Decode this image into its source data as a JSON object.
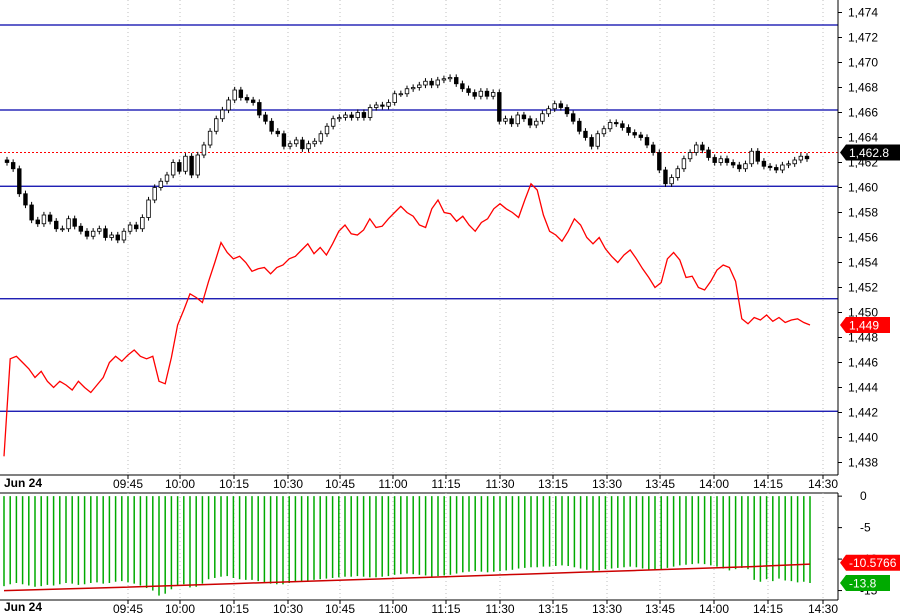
{
  "chart_data": [
    {
      "type": "line",
      "panel": "price",
      "ylim": [
        1437,
        1475
      ],
      "yticks": [
        1438,
        1440,
        1442,
        1444,
        1446,
        1448,
        1450,
        1452,
        1454,
        1456,
        1458,
        1460,
        1462,
        1464,
        1466,
        1468,
        1470,
        1472,
        1474
      ],
      "ytick_labels": [
        "1,438",
        "1,440",
        "1,442",
        "1,444",
        "1,446",
        "1,448",
        "1,450",
        "1,452",
        "1,454",
        "1,456",
        "1,458",
        "1,460",
        "1,462",
        "1,464",
        "1,466",
        "1,468",
        "1,470",
        "1,472",
        "1,474"
      ],
      "date_label": "Jun 24",
      "xtick_labels": [
        "09:45",
        "10:00",
        "10:15",
        "10:30",
        "10:45",
        "11:00",
        "11:15",
        "11:30",
        "13:15",
        "13:30",
        "13:45",
        "14:00",
        "14:15",
        "14:30"
      ],
      "horizontal_lines": [
        1473,
        1466.2,
        1460.1,
        1451.1,
        1442.1
      ],
      "dotted_level": 1462.8,
      "badges": [
        {
          "text": "1,462.8",
          "value": 1462.8,
          "color": "#000000"
        },
        {
          "text": "1,449",
          "value": 1449.0,
          "color": "#ff0000"
        }
      ],
      "series": [
        {
          "style": "candlestick",
          "close": [
            1462.0,
            1461.5,
            1459.5,
            1458.6,
            1457.4,
            1457.1,
            1457.8,
            1457.3,
            1456.7,
            1456.7,
            1457.5,
            1456.9,
            1456.5,
            1456.1,
            1456.5,
            1456.7,
            1456.0,
            1456.2,
            1455.8,
            1456.5,
            1457.0,
            1456.7,
            1457.6,
            1459.0,
            1460.0,
            1460.5,
            1461.0,
            1462.0,
            1461.3,
            1462.5,
            1461.0,
            1462.6,
            1463.4,
            1464.5,
            1465.5,
            1466.2,
            1467.0,
            1467.8,
            1467.2,
            1467.0,
            1466.8,
            1465.8,
            1465.3,
            1464.5,
            1464.3,
            1463.3,
            1463.5,
            1463.8,
            1463.1,
            1463.5,
            1463.7,
            1464.3,
            1464.9,
            1465.5,
            1465.6,
            1465.8,
            1465.6,
            1466.0,
            1465.6,
            1466.4,
            1466.6,
            1466.5,
            1466.8,
            1467.5,
            1467.5,
            1467.9,
            1468.0,
            1468.2,
            1468.5,
            1468.2,
            1468.6,
            1468.7,
            1468.8,
            1468.3,
            1467.9,
            1467.6,
            1467.3,
            1467.7,
            1467.3,
            1467.6,
            1465.3,
            1465.5,
            1465.1,
            1465.8,
            1465.5,
            1465.0,
            1465.3,
            1465.9,
            1466.3,
            1466.7,
            1466.4,
            1465.9,
            1465.3,
            1464.5,
            1464.0,
            1463.3,
            1464.3,
            1464.7,
            1465.2,
            1465.1,
            1464.8,
            1464.4,
            1464.2,
            1464.0,
            1463.4,
            1462.8,
            1461.4,
            1460.3,
            1460.8,
            1461.5,
            1462.3,
            1462.8,
            1463.4,
            1463.0,
            1462.4,
            1462.0,
            1462.3,
            1462.0,
            1461.8,
            1461.5,
            1461.9,
            1462.9,
            1462.1,
            1461.7,
            1461.6,
            1461.4,
            1461.8,
            1461.9,
            1462.2,
            1462.5,
            1462.3
          ]
        },
        {
          "style": "line",
          "color": "#ff0000",
          "values": [
            1438.5,
            1446.3,
            1446.5,
            1446.0,
            1445.5,
            1444.8,
            1445.3,
            1444.5,
            1444.0,
            1444.5,
            1444.2,
            1443.8,
            1444.5,
            1444.0,
            1443.6,
            1444.2,
            1444.8,
            1446.0,
            1446.5,
            1446.1,
            1446.6,
            1447.0,
            1446.5,
            1446.3,
            1446.5,
            1444.5,
            1444.3,
            1446.4,
            1449.0,
            1450.2,
            1451.5,
            1451.2,
            1450.8,
            1452.5,
            1454.0,
            1455.6,
            1454.8,
            1454.3,
            1454.5,
            1454.0,
            1453.3,
            1453.5,
            1453.6,
            1453.1,
            1453.6,
            1453.8,
            1454.3,
            1454.5,
            1455.0,
            1455.5,
            1454.7,
            1455.2,
            1454.6,
            1455.5,
            1456.5,
            1457.0,
            1456.3,
            1456.2,
            1456.6,
            1457.5,
            1456.8,
            1456.9,
            1457.5,
            1458.0,
            1458.5,
            1458.0,
            1457.7,
            1457.0,
            1456.8,
            1458.3,
            1459.0,
            1458.0,
            1457.9,
            1457.3,
            1457.7,
            1457.0,
            1456.5,
            1457.2,
            1457.5,
            1458.3,
            1458.7,
            1458.3,
            1458.0,
            1457.6,
            1459.0,
            1460.3,
            1459.8,
            1457.8,
            1456.5,
            1456.2,
            1455.7,
            1456.5,
            1457.5,
            1457.0,
            1456.0,
            1455.5,
            1456.0,
            1455.1,
            1454.5,
            1454.0,
            1454.6,
            1455.0,
            1454.3,
            1453.5,
            1452.8,
            1452.0,
            1452.4,
            1454.3,
            1454.8,
            1454.2,
            1452.8,
            1452.9,
            1452.0,
            1451.8,
            1452.5,
            1453.4,
            1453.8,
            1453.6,
            1452.5,
            1449.5,
            1449.1,
            1449.6,
            1449.4,
            1449.8,
            1449.3,
            1449.6,
            1449.2,
            1449.4,
            1449.5,
            1449.2,
            1449.0
          ]
        }
      ]
    },
    {
      "type": "bar",
      "panel": "indicator",
      "ylim": [
        -16.5,
        0.5
      ],
      "yticks": [
        0,
        -5,
        -10,
        -15
      ],
      "ytick_labels": [
        "0",
        "-5",
        "-10",
        "-15"
      ],
      "date_label": "Jun 24",
      "xtick_labels": [
        "09:45",
        "10:00",
        "10:15",
        "10:30",
        "10:45",
        "11:00",
        "11:15",
        "11:30",
        "13:15",
        "13:30",
        "13:45",
        "14:00",
        "14:15",
        "14:30"
      ],
      "badges": [
        {
          "text": "-10.5766",
          "value": -10.5766,
          "color": "#ff0000"
        },
        {
          "text": "-13.8",
          "value": -13.8,
          "color": "#00aa00"
        }
      ],
      "series": [
        {
          "style": "bar",
          "color": "#00aa00",
          "values": [
            -14.3,
            -14.0,
            -13.8,
            -14.0,
            -14.2,
            -14.4,
            -14.3,
            -14.1,
            -14.2,
            -14.0,
            -13.8,
            -13.9,
            -14.1,
            -14.0,
            -13.8,
            -13.7,
            -13.9,
            -13.8,
            -13.6,
            -13.5,
            -13.7,
            -13.9,
            -14.2,
            -14.6,
            -15.0,
            -15.8,
            -15.5,
            -14.8,
            -14.2,
            -14.0,
            -14.5,
            -14.4,
            -13.9,
            -13.2,
            -13.0,
            -12.8,
            -12.7,
            -13.0,
            -13.2,
            -13.3,
            -13.3,
            -13.5,
            -13.7,
            -13.9,
            -14.0,
            -14.0,
            -13.8,
            -13.6,
            -13.5,
            -13.4,
            -13.3,
            -13.2,
            -13.1,
            -13.0,
            -12.9,
            -12.8,
            -12.8,
            -12.7,
            -12.8,
            -12.9,
            -12.9,
            -12.8,
            -12.7,
            -12.5,
            -12.4,
            -12.3,
            -12.4,
            -12.5,
            -12.6,
            -12.8,
            -12.7,
            -12.6,
            -12.5,
            -12.3,
            -12.1,
            -12.0,
            -11.9,
            -12.0,
            -12.1,
            -12.0,
            -11.9,
            -11.8,
            -11.7,
            -11.5,
            -11.4,
            -11.3,
            -11.3,
            -11.2,
            -11.2,
            -11.1,
            -11.0,
            -11.1,
            -11.3,
            -11.5,
            -11.7,
            -11.9,
            -11.8,
            -11.6,
            -11.5,
            -11.4,
            -11.3,
            -11.2,
            -11.3,
            -11.5,
            -11.7,
            -11.8,
            -11.6,
            -11.4,
            -11.2,
            -11.0,
            -10.9,
            -10.8,
            -10.7,
            -10.8,
            -11.0,
            -11.2,
            -11.5,
            -11.8,
            -11.6,
            -11.4,
            -11.6,
            -13.3,
            -13.6,
            -13.2,
            -13.5,
            -13.1,
            -13.4,
            -13.5,
            -13.7,
            -13.6,
            -13.8
          ]
        },
        {
          "style": "line",
          "color": "#cc0000",
          "values": [
            -15.0,
            -14.75,
            -14.5,
            -14.2,
            -13.9,
            -13.6,
            -13.3,
            -13.0,
            -12.7,
            -12.4,
            -12.1,
            -11.8,
            -11.5,
            -11.2,
            -10.8
          ]
        }
      ]
    }
  ]
}
